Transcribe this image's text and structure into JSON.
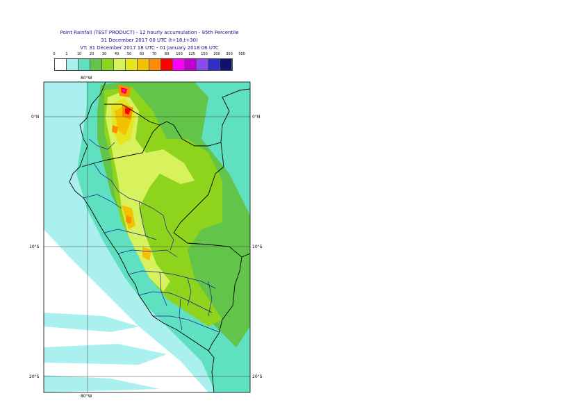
{
  "title": {
    "line1": "Point Rainfall (TEST PRODUCT) - 12 hourly accumulation - 95th Percentile",
    "line2": "31 December 2017 00 UTC (t+18,t+30)",
    "line3": "VT: 31 December 2017 18 UTC - 01 January 2018 06 UTC"
  },
  "legend": {
    "labels": [
      "0",
      "1",
      "10",
      "20",
      "30",
      "40",
      "50",
      "60",
      "70",
      "80",
      "100",
      "125",
      "150",
      "200",
      "300",
      "500"
    ],
    "colors": [
      "#ffffff",
      "#a9f0ee",
      "#5fe0c0",
      "#62c449",
      "#8fd41c",
      "#d7f25c",
      "#e6e61e",
      "#f2c200",
      "#ff8c00",
      "#ff0000",
      "#ff00ff",
      "#c000d0",
      "#8a4af0",
      "#3030c8",
      "#101070"
    ]
  },
  "axes": {
    "lon_top": "80°W",
    "lon_bottom": "80°W",
    "lat_0_left": "0°N",
    "lat_0_right": "0°N",
    "lat_10_left": "10°S",
    "lat_10_right": "10°S",
    "lat_20_left": "20°S",
    "lat_20_right": "20°S"
  }
}
